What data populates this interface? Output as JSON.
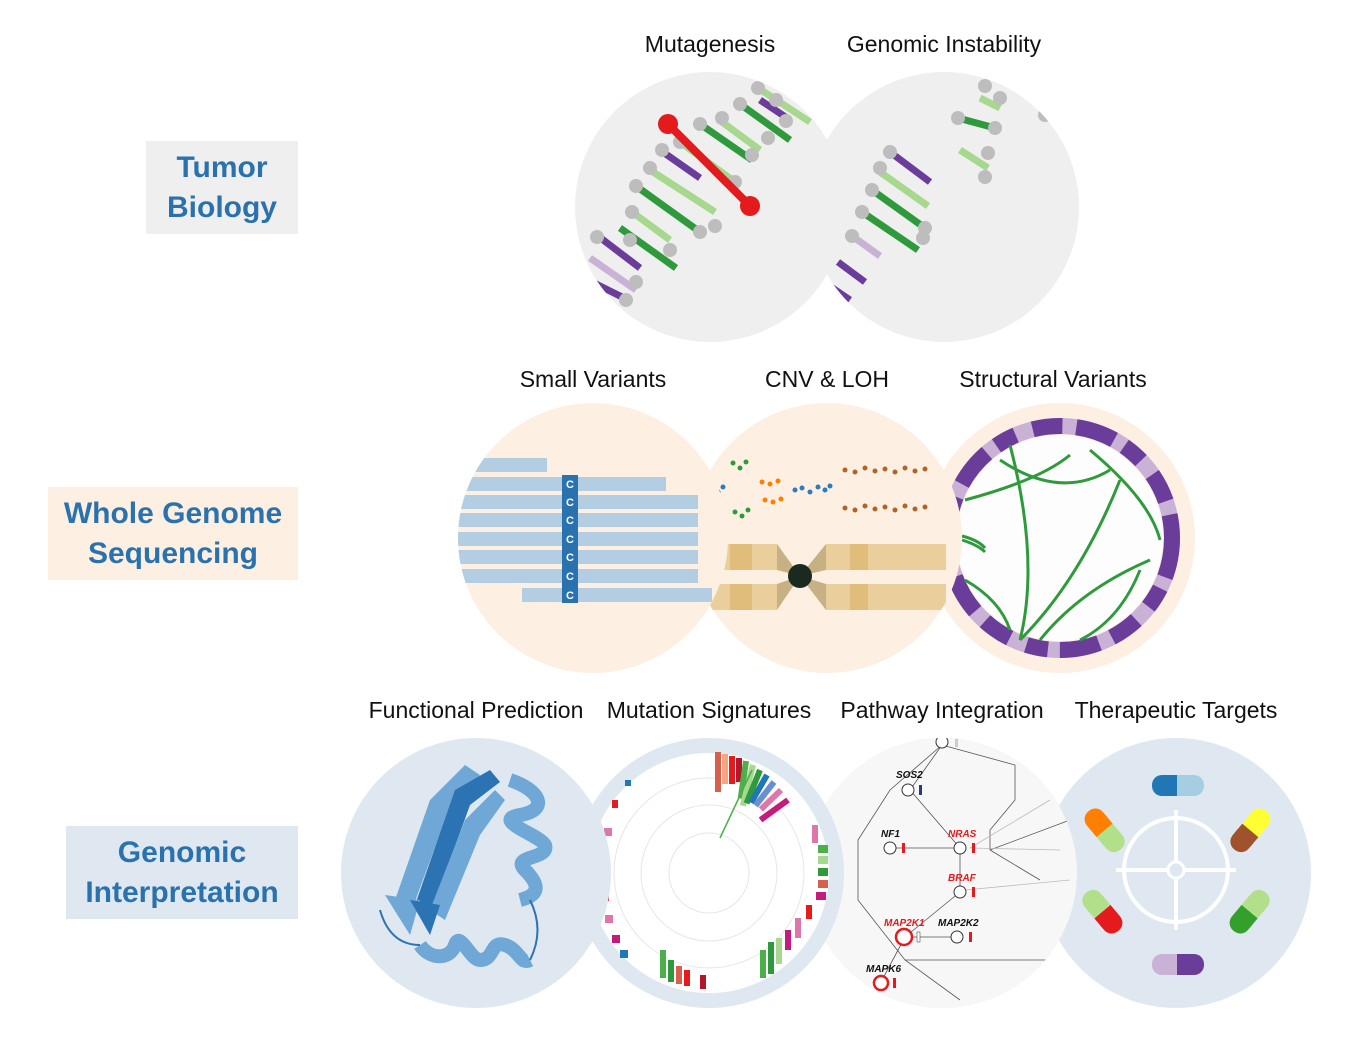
{
  "sections": {
    "tumor_biology": {
      "line1": "Tumor",
      "line2": "Biology",
      "bg": "#efefef"
    },
    "wgs": {
      "line1": "Whole Genome",
      "line2": "Sequencing",
      "bg": "#fdf0e2"
    },
    "genomic_interp": {
      "line1": "Genomic",
      "line2": "Interpretation",
      "bg": "#dfe8f1"
    }
  },
  "titles": {
    "mutagenesis": "Mutagenesis",
    "genomic_instability": "Genomic Instability",
    "small_variants": "Small Variants",
    "cnv_loh": "CNV & LOH",
    "structural_variants": "Structural Variants",
    "functional_prediction": "Functional Prediction",
    "mutation_signatures": "Mutation Signatures",
    "pathway_integration": "Pathway Integration",
    "therapeutic_targets": "Therapeutic Targets"
  },
  "small_variants_base": "C",
  "pathway_genes": {
    "sos2": "SOS2",
    "nf1": "NF1",
    "nras": "NRAS",
    "braf": "BRAF",
    "map2k1": "MAP2K1",
    "map2k2": "MAP2K2",
    "mapk6": "MAPK6"
  },
  "colors": {
    "label_text": "#2a72ad",
    "tumor_circle": "#efefef",
    "wgs_circle": "#fdf0e2",
    "interp_circle": "#dfe8f1",
    "mutation_red": "#e41a1c",
    "dna_green": "#2f9a3c",
    "dna_light_green": "#a6d88d",
    "dna_purple": "#6a3d9a",
    "dna_light_purple": "#cab2d6"
  }
}
